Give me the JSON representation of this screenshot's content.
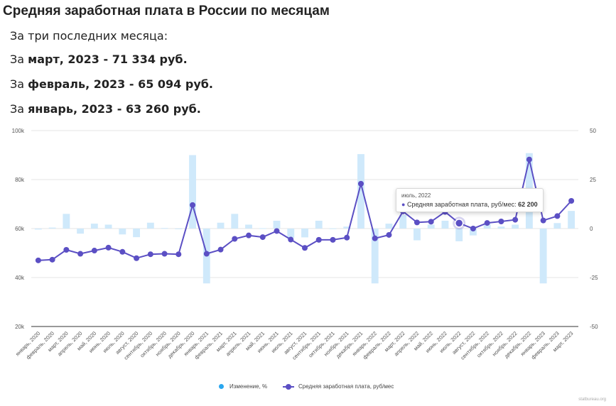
{
  "header": {
    "title": "Средняя заработная плата в России по месяцам",
    "intro": "За три последних месяца:"
  },
  "stats": [
    {
      "prefix": "За ",
      "period": "март, 2023",
      "rest": " - 71 334 руб."
    },
    {
      "prefix": "За ",
      "period": "февраль, 2023",
      "rest": " - 65 094 руб."
    },
    {
      "prefix": "За ",
      "period": "январь, 2023",
      "rest": " - 63 260 руб."
    }
  ],
  "tooltip": {
    "date": "июль, 2022",
    "label": "Средняя заработная плата, руб/мес:",
    "value": "62 200"
  },
  "legend": {
    "change": "Изменение, %",
    "salary": "Средняя заработная плата, руб/мес"
  },
  "credit": "statbureau.org",
  "chart_data": {
    "type": "bar+line",
    "categories": [
      "январь, 2020",
      "февраль, 2020",
      "март, 2020",
      "апрель, 2020",
      "май, 2020",
      "июнь, 2020",
      "июль, 2020",
      "август, 2020",
      "сентябрь, 2020",
      "октябрь, 2020",
      "ноябрь, 2020",
      "декабрь, 2020",
      "январь, 2021",
      "февраль, 2021",
      "март, 2021",
      "апрель, 2021",
      "май, 2021",
      "июнь, 2021",
      "июль, 2021",
      "август, 2021",
      "сентябрь, 2021",
      "октябрь, 2021",
      "ноябрь, 2021",
      "декабрь, 2021",
      "январь, 2022",
      "февраль, 2022",
      "март, 2022",
      "апрель, 2022",
      "май, 2022",
      "июнь, 2022",
      "июль, 2022",
      "август, 2022",
      "сентябрь, 2022",
      "октябрь, 2022",
      "ноябрь, 2022",
      "декабрь, 2022",
      "январь, 2023",
      "февраль, 2023",
      "март, 2023"
    ],
    "series": [
      {
        "name": "Изменение, %",
        "axis": "right",
        "color": "#cfe9fb",
        "values": [
          -0.5,
          0.5,
          7.5,
          -2.6,
          2.5,
          2.0,
          -3.0,
          -4.4,
          3.0,
          0.3,
          -0.1,
          37.5,
          -28.0,
          3.0,
          7.5,
          2.0,
          0.2,
          4.0,
          -4.8,
          -4.5,
          4.0,
          0.1,
          1.0,
          38.0,
          -28.0,
          2.5,
          7.0,
          -6.0,
          2.0,
          4.0,
          -6.5,
          -3.5,
          2.3,
          1.0,
          2.0,
          38.5,
          -28.0,
          2.8,
          9.0
        ]
      },
      {
        "name": "Средняя заработная плата, руб/мес",
        "axis": "left",
        "color": "#5b4fc4",
        "values": [
          47000,
          47300,
          51300,
          49700,
          51000,
          52200,
          50500,
          47900,
          49500,
          49700,
          49500,
          69600,
          49700,
          51400,
          55800,
          57200,
          56500,
          59000,
          55500,
          52100,
          55400,
          55400,
          56300,
          78300,
          56000,
          57400,
          67000,
          62500,
          62800,
          66800,
          62200,
          60000,
          62300,
          62900,
          63600,
          88200,
          63300,
          65100,
          71300
        ]
      }
    ],
    "left_axis": {
      "ticks": [
        "20k",
        "40k",
        "60k",
        "80k",
        "100k"
      ],
      "ylim": [
        20000,
        100000
      ]
    },
    "right_axis": {
      "ticks": [
        "-50",
        "-25",
        "0",
        "25",
        "50"
      ],
      "ylim": [
        -50,
        50
      ]
    },
    "xtick_labels": [
      "январь, 2020",
      "февраль, 2020",
      "март, 2020",
      "апрель, 2020",
      "май, 2020",
      "июнь, 2020",
      "июль, 2020",
      "август, 2020",
      "сентябрь, 2020",
      "октябрь, 2020",
      "ноябрь, 2020",
      "декабрь, 2020",
      "январь, 2021",
      "февраль, 2021",
      "март, 2021",
      "апрель, 2021",
      "май, 2021",
      "июнь, 2021",
      "июль, 2021",
      "август, 2021",
      "сентябрь, 2021",
      "октябрь, 2021",
      "ноябрь, 2021",
      "декабрь, 2021",
      "январь, 2022",
      "февраль, 2022",
      "март, 2022",
      "апрель, 2022",
      "май, 2022",
      "июнь, 2022",
      "июль, 2022",
      "август, 2022",
      "сентябрь, 2022",
      "октябрь, 2022",
      "ноябрь, 2022",
      "декабрь, 2022",
      "январь, 2023",
      "февраль, 2023",
      "март, 2023"
    ],
    "grid": true,
    "highlighted_point": "июль, 2022",
    "legend_position": "bottom"
  }
}
